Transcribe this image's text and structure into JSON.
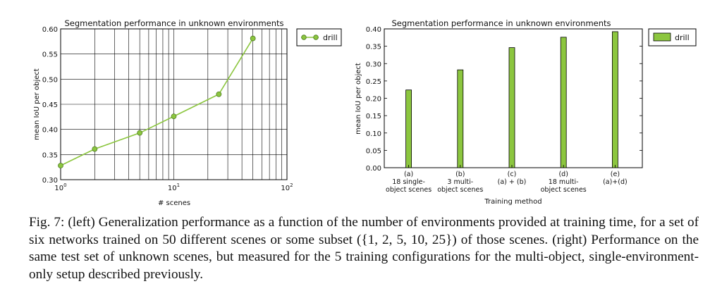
{
  "chart_data": [
    {
      "type": "line",
      "title": "Segmentation performance in unknown environments",
      "xlabel": "# scenes",
      "ylabel": "mean IoU per object",
      "x_scale": "log",
      "xlim": [
        1,
        100
      ],
      "ylim": [
        0.3,
        0.6
      ],
      "x_ticks": [
        1,
        10,
        100
      ],
      "y_ticks": [
        0.3,
        0.35,
        0.4,
        0.45,
        0.5,
        0.55,
        0.6
      ],
      "grid": true,
      "legend_position": "right",
      "series": [
        {
          "name": "drill",
          "color": "#8cc63f",
          "x": [
            1,
            2,
            5,
            10,
            25,
            50
          ],
          "y": [
            0.328,
            0.361,
            0.393,
            0.426,
            0.47,
            0.581
          ]
        }
      ]
    },
    {
      "type": "bar",
      "title": "Segmentation performance in unknown environments",
      "xlabel": "Training method",
      "ylabel": "mean IoU per object",
      "ylim": [
        0.0,
        0.4
      ],
      "y_ticks": [
        0.0,
        0.05,
        0.1,
        0.15,
        0.2,
        0.25,
        0.3,
        0.35,
        0.4
      ],
      "grid": false,
      "legend_position": "right",
      "categories": [
        [
          "(a)",
          "18 single-",
          "object scenes"
        ],
        [
          "(b)",
          "3 multi-",
          "object scenes"
        ],
        [
          "(c)",
          "(a) + (b)"
        ],
        [
          "(d)",
          "18 multi-",
          "object scenes"
        ],
        [
          "(e)",
          "(a)+(d)"
        ]
      ],
      "series": [
        {
          "name": "drill",
          "color": "#8cc63f",
          "values": [
            0.224,
            0.282,
            0.346,
            0.376,
            0.392
          ]
        }
      ]
    }
  ],
  "caption": "Fig. 7: (left) Generalization performance as a function of the number of environments provided at training time, for a set of six networks trained on 50 different scenes or some subset ({1, 2, 5, 10, 25}) of those scenes. (right) Performance on the same test set of unknown scenes, but measured for the 5 training configurations for the multi-object, single-environment-only setup described previously."
}
